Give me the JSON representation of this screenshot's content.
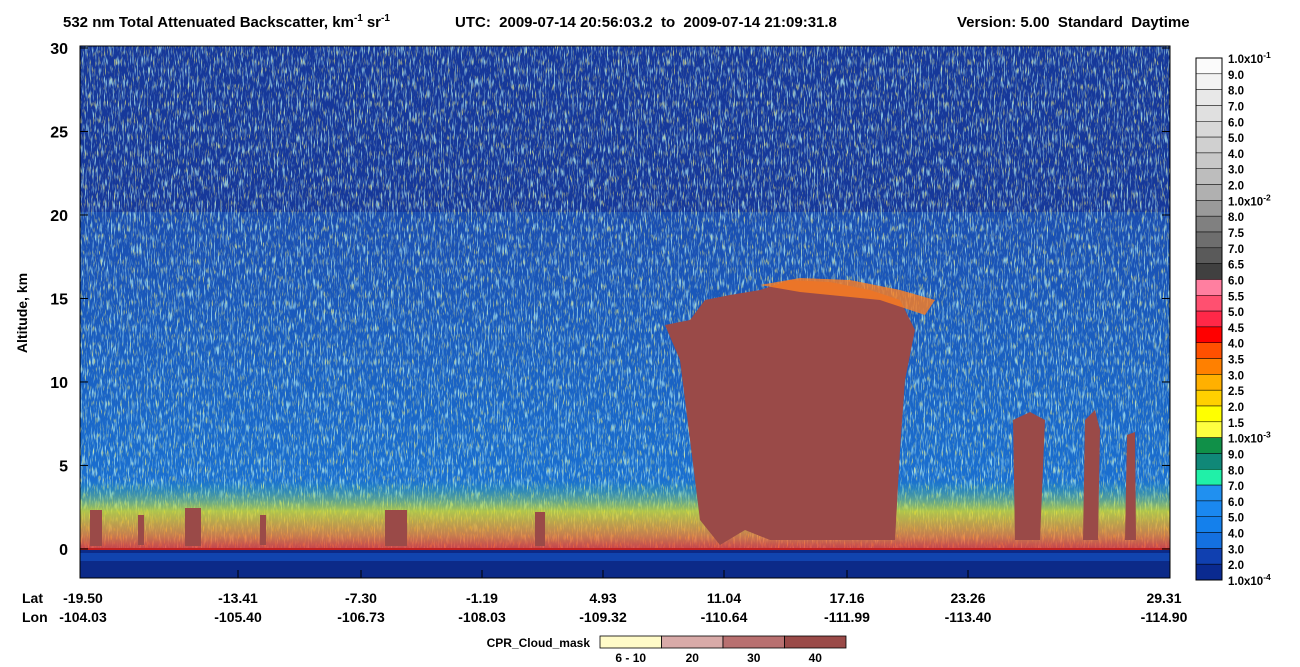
{
  "chart_data": {
    "type": "heatmap",
    "title": {
      "text": "532 nm Total Attenuated Backscatter, km",
      "exp": "-1",
      "unit": "sr",
      "unit_exp": "-1"
    },
    "utc": "UTC:  2009-07-14 20:56:03.2  to  2009-07-14 21:09:31.8",
    "version": "Version: 5.00  Standard  Daytime",
    "ylabel": "Altitude, km",
    "ylim": [
      -1.74,
      30.12
    ],
    "yticks": [
      0,
      5,
      10,
      15,
      20,
      25,
      30
    ],
    "x_rows": [
      "Lat",
      "Lon"
    ],
    "lat_labels": [
      "-19.50",
      "-13.41",
      "-7.30",
      "-1.19",
      "4.93",
      "11.04",
      "17.16",
      "23.26",
      "29.31"
    ],
    "lon_labels": [
      "-104.03",
      "-105.40",
      "-106.73",
      "-108.03",
      "-109.32",
      "-110.64",
      "-111.99",
      "-113.40",
      "-114.90"
    ],
    "colorbar": {
      "labels": [
        {
          "base": "1.0x10",
          "exp": "-1"
        },
        "9.0",
        "8.0",
        "7.0",
        "6.0",
        "5.0",
        "4.0",
        "3.0",
        "2.0",
        {
          "base": "1.0x10",
          "exp": "-2"
        },
        "8.0",
        "7.5",
        "7.0",
        "6.5",
        "6.0",
        "5.5",
        "5.0",
        "4.5",
        "4.0",
        "3.5",
        "3.0",
        "2.5",
        "2.0",
        "1.5",
        {
          "base": "1.0x10",
          "exp": "-3"
        },
        "9.0",
        "8.0",
        "7.0",
        "6.0",
        "5.0",
        "4.0",
        "3.0",
        "2.0",
        {
          "base": "1.0x10",
          "exp": "-4"
        }
      ],
      "colors": [
        "#fbfbfb",
        "#f2f2f2",
        "#e8e8e8",
        "#e0e0e0",
        "#d8d8d8",
        "#d0d0d0",
        "#c8c8c8",
        "#bdbdbd",
        "#b0b0b0",
        "#9a9a9a",
        "#808080",
        "#6e6e6e",
        "#5a5a5a",
        "#404040",
        "#ff7fa0",
        "#ff5070",
        "#ff2848",
        "#ff0000",
        "#ff5000",
        "#ff8000",
        "#ffb000",
        "#ffd000",
        "#ffff00",
        "#ffff40",
        "#109048",
        "#108878",
        "#20f0a8",
        "#2090f0",
        "#1a88f0",
        "#1480ec",
        "#1470e0",
        "#1040b0",
        "#0a2a90"
      ]
    },
    "cloud_mask": {
      "label": "CPR_Cloud_mask",
      "labels": [
        "6 - 10",
        "20",
        "30",
        "40"
      ],
      "colors": [
        "#fffbc8",
        "#d8aaa8",
        "#b87070",
        "#9a4a48"
      ]
    }
  }
}
